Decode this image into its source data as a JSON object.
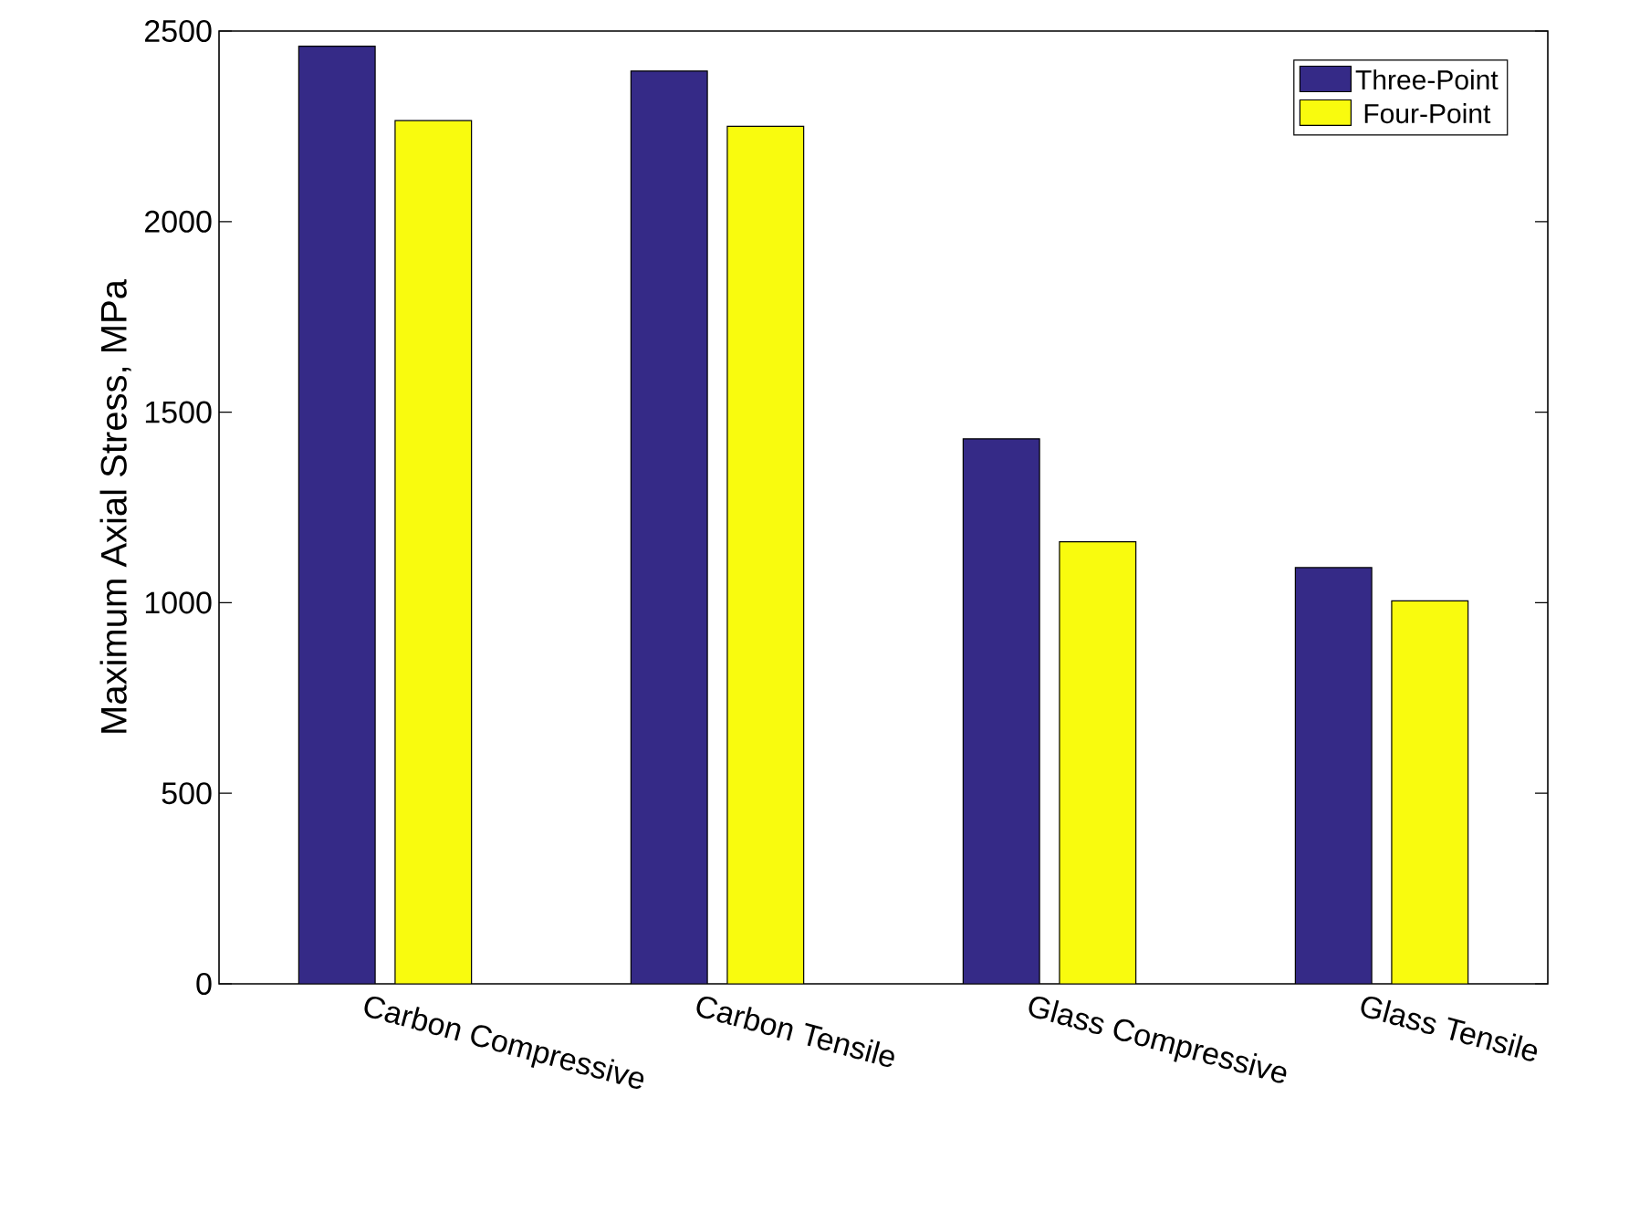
{
  "chart_data": {
    "type": "bar",
    "ylabel": "Maximum Axial Stress, MPa",
    "categories": [
      "Carbon Compressive",
      "Carbon Tensile",
      "Glass Compressive",
      "Glass Tensile"
    ],
    "series": [
      {
        "name": "Three-Point",
        "color": "#352a87",
        "values": [
          2460,
          2395,
          1430,
          1092
        ]
      },
      {
        "name": "Four-Point",
        "color": "#f9fb0e",
        "values": [
          2265,
          2250,
          1160,
          1005
        ]
      }
    ],
    "ylim": [
      0,
      2500
    ],
    "yticks": [
      0,
      500,
      1000,
      1500,
      2000,
      2500
    ],
    "grid": false,
    "legend": "top right"
  }
}
